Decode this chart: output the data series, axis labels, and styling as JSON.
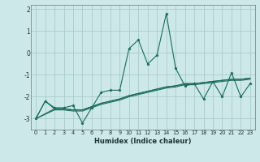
{
  "title": "",
  "xlabel": "Humidex (Indice chaleur)",
  "ylabel": "",
  "bg_color": "#cce8e8",
  "grid_color": "#aacccc",
  "line_color": "#1a6b5a",
  "xlim": [
    -0.5,
    23.5
  ],
  "ylim": [
    -3.5,
    2.2
  ],
  "yticks": [
    -3,
    -2,
    -1,
    0,
    1,
    2
  ],
  "xticks": [
    0,
    1,
    2,
    3,
    4,
    5,
    6,
    7,
    8,
    9,
    10,
    11,
    12,
    13,
    14,
    15,
    16,
    17,
    18,
    19,
    20,
    21,
    22,
    23
  ],
  "series1_x": [
    0,
    1,
    2,
    3,
    4,
    5,
    6,
    7,
    8,
    9,
    10,
    11,
    12,
    13,
    14,
    15,
    16,
    17,
    18,
    19,
    20,
    21,
    22,
    23
  ],
  "series1_y": [
    -3.0,
    -2.2,
    -2.5,
    -2.5,
    -2.4,
    -3.2,
    -2.5,
    -1.8,
    -1.7,
    -1.7,
    0.2,
    0.6,
    -0.5,
    -0.1,
    1.8,
    -0.7,
    -1.5,
    -1.4,
    -2.1,
    -1.3,
    -2.0,
    -0.9,
    -2.0,
    -1.4
  ],
  "series2_x": [
    0,
    1,
    2,
    3,
    4,
    5,
    6,
    7,
    8,
    9,
    10,
    11,
    12,
    13,
    14,
    15,
    16,
    17,
    18,
    19,
    20,
    21,
    22,
    23
  ],
  "series2_y": [
    -3.0,
    -2.2,
    -2.55,
    -2.55,
    -2.6,
    -2.6,
    -2.45,
    -2.3,
    -2.2,
    -2.1,
    -1.95,
    -1.85,
    -1.75,
    -1.65,
    -1.55,
    -1.5,
    -1.4,
    -1.4,
    -1.35,
    -1.3,
    -1.25,
    -1.2,
    -1.2,
    -1.15
  ],
  "series3_x": [
    0,
    2,
    3,
    4,
    5,
    6,
    7,
    8,
    9,
    10,
    11,
    12,
    13,
    14,
    15,
    16,
    17,
    18,
    19,
    20,
    21,
    22,
    23
  ],
  "series3_y": [
    -3.0,
    -2.55,
    -2.55,
    -2.6,
    -2.6,
    -2.45,
    -2.3,
    -2.2,
    -2.1,
    -1.95,
    -1.85,
    -1.75,
    -1.65,
    -1.55,
    -1.5,
    -1.4,
    -1.4,
    -1.35,
    -1.3,
    -1.25,
    -1.2,
    -1.2,
    -1.15
  ],
  "series4_x": [
    0,
    2,
    3,
    4,
    5,
    6,
    7,
    8,
    9,
    10,
    11,
    12,
    13,
    14,
    15,
    16,
    17,
    18,
    19,
    20,
    21,
    22,
    23
  ],
  "series4_y": [
    -3.0,
    -2.6,
    -2.6,
    -2.65,
    -2.65,
    -2.5,
    -2.35,
    -2.25,
    -2.15,
    -2.0,
    -1.9,
    -1.8,
    -1.7,
    -1.6,
    -1.55,
    -1.45,
    -1.45,
    -1.4,
    -1.35,
    -1.3,
    -1.25,
    -1.25,
    -1.2
  ]
}
